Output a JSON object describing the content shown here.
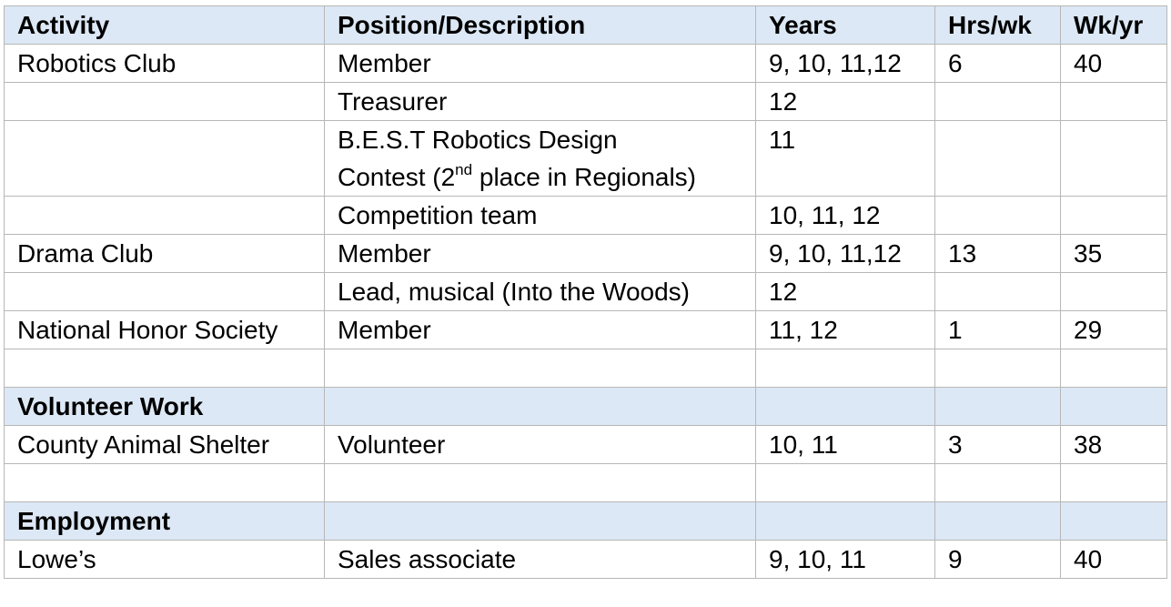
{
  "header": {
    "activity": "Activity",
    "position": "Position/Description",
    "years": "Years",
    "hrs": "Hrs/wk",
    "wks": "Wk/yr"
  },
  "rows": [
    {
      "activity": "Robotics Club",
      "position": "Member",
      "years": "9, 10, 11,12",
      "hrs": "6",
      "wks": "40"
    },
    {
      "activity": "",
      "position": "Treasurer",
      "years": "12",
      "hrs": "",
      "wks": ""
    },
    {
      "activity": "",
      "position_line1": "B.E.S.T Robotics Design",
      "position_line2_pre": "Contest (2",
      "position_line2_sup": "nd",
      "position_line2_post": " place in Regionals)",
      "years": "11",
      "hrs": "",
      "wks": ""
    },
    {
      "activity": "",
      "position": "Competition team",
      "years": "10, 11, 12",
      "hrs": "",
      "wks": ""
    },
    {
      "activity": "Drama Club",
      "position": "Member",
      "years": "9, 10, 11,12",
      "hrs": "13",
      "wks": "35"
    },
    {
      "activity": "",
      "position": "Lead, musical (Into the Woods)",
      "years": "12",
      "hrs": "",
      "wks": ""
    },
    {
      "activity": "National Honor Society",
      "position": "Member",
      "years": "11, 12",
      "hrs": "1",
      "wks": "29"
    }
  ],
  "volunteer": {
    "heading": "Volunteer Work",
    "rows": [
      {
        "activity": "County Animal Shelter",
        "position": "Volunteer",
        "years": "10, 11",
        "hrs": "3",
        "wks": "38"
      }
    ]
  },
  "employment": {
    "heading": "Employment",
    "rows": [
      {
        "activity": "Lowe’s",
        "position": "Sales associate",
        "years": "9, 10, 11",
        "hrs": "9",
        "wks": "40"
      }
    ]
  },
  "colors": {
    "header_bg": "#dce8f5",
    "border": "#b7b7b7"
  }
}
